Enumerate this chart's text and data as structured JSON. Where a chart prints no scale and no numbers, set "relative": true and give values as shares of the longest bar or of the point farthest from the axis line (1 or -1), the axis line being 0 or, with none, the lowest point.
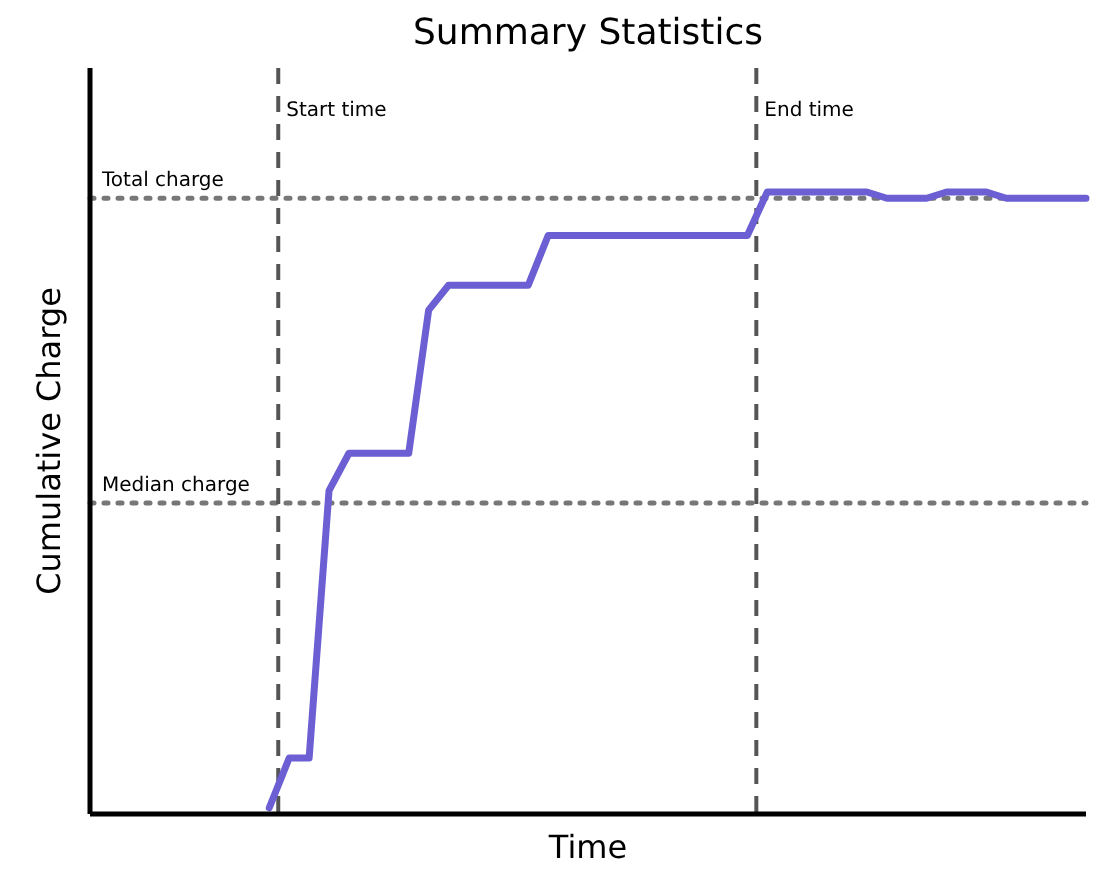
{
  "chart_data": {
    "type": "line",
    "title": "Summary Statistics",
    "xlabel": "Time",
    "ylabel": "Cumulative Charge",
    "relative": true,
    "categories": [
      null,
      null,
      null,
      null,
      null,
      null,
      null,
      null,
      null,
      null,
      null,
      null,
      null,
      null,
      null,
      null,
      null,
      null,
      null,
      null,
      null,
      null,
      null,
      null,
      null,
      null,
      null,
      null,
      null,
      null,
      null,
      null,
      null,
      null,
      null,
      null,
      null,
      null,
      null,
      null,
      null,
      null,
      null,
      null,
      null,
      null,
      null,
      null,
      null,
      null,
      null
    ],
    "series": [
      {
        "color": "#6b5fd3",
        "values": [
          null,
          null,
          null,
          null,
          null,
          null,
          null,
          null,
          null,
          0.01,
          0.09,
          0.09,
          0.52,
          0.58,
          0.58,
          0.58,
          0.58,
          0.81,
          0.85,
          0.85,
          0.85,
          0.85,
          0.85,
          0.93,
          0.93,
          0.93,
          0.93,
          0.93,
          0.93,
          0.93,
          0.93,
          0.93,
          0.93,
          0.93,
          1.0,
          1.0,
          1.0,
          1.0,
          1.0,
          1.0,
          0.99,
          0.99,
          0.99,
          1.0,
          1.0,
          1.0,
          0.99,
          0.99,
          0.99,
          0.99,
          0.99
        ]
      }
    ],
    "annotations": [
      "Start time",
      "End time"
    ],
    "ref_lines": [
      {
        "axis": "y",
        "value": 0.99,
        "label": "Total charge",
        "line_style": "dotted",
        "color": "#777777"
      },
      {
        "axis": "y",
        "value": 0.5,
        "label": "Median charge",
        "line_style": "dotted",
        "color": "#777777"
      }
    ]
  }
}
